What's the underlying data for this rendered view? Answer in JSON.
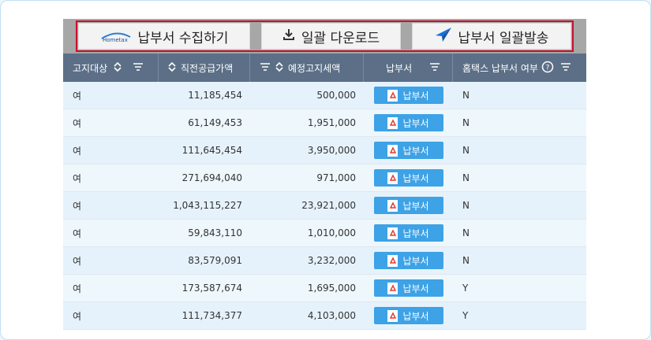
{
  "toolbar": {
    "collect_label": "납부서 수집하기",
    "download_label": "일괄 다운로드",
    "send_label": "납부서 일괄발송",
    "logo_text": "Hometax"
  },
  "table": {
    "headers": [
      "고지대상",
      "직전공급가액",
      "예정고지세액",
      "납부서",
      "홈택스 납부서 여부"
    ],
    "pdf_button_label": "납부서",
    "rows": [
      {
        "target": "여",
        "supply": "11,185,454",
        "tax": "500,000",
        "hometax": "N"
      },
      {
        "target": "여",
        "supply": "61,149,453",
        "tax": "1,951,000",
        "hometax": "N"
      },
      {
        "target": "여",
        "supply": "111,645,454",
        "tax": "3,950,000",
        "hometax": "N"
      },
      {
        "target": "여",
        "supply": "271,694,040",
        "tax": "971,000",
        "hometax": "N"
      },
      {
        "target": "여",
        "supply": "1,043,115,227",
        "tax": "23,921,000",
        "hometax": "N"
      },
      {
        "target": "여",
        "supply": "59,843,110",
        "tax": "1,010,000",
        "hometax": "N"
      },
      {
        "target": "여",
        "supply": "83,579,091",
        "tax": "3,232,000",
        "hometax": "N"
      },
      {
        "target": "여",
        "supply": "173,587,674",
        "tax": "1,695,000",
        "hometax": "Y"
      },
      {
        "target": "여",
        "supply": "111,734,377",
        "tax": "4,103,000",
        "hometax": "Y"
      }
    ]
  },
  "colors": {
    "header_bg": "#5c6f87",
    "toolbar_bg": "#a7a7a7",
    "highlight": "#c8102e",
    "pdf_button": "#3da2e6",
    "send_icon": "#1a6fd6"
  }
}
